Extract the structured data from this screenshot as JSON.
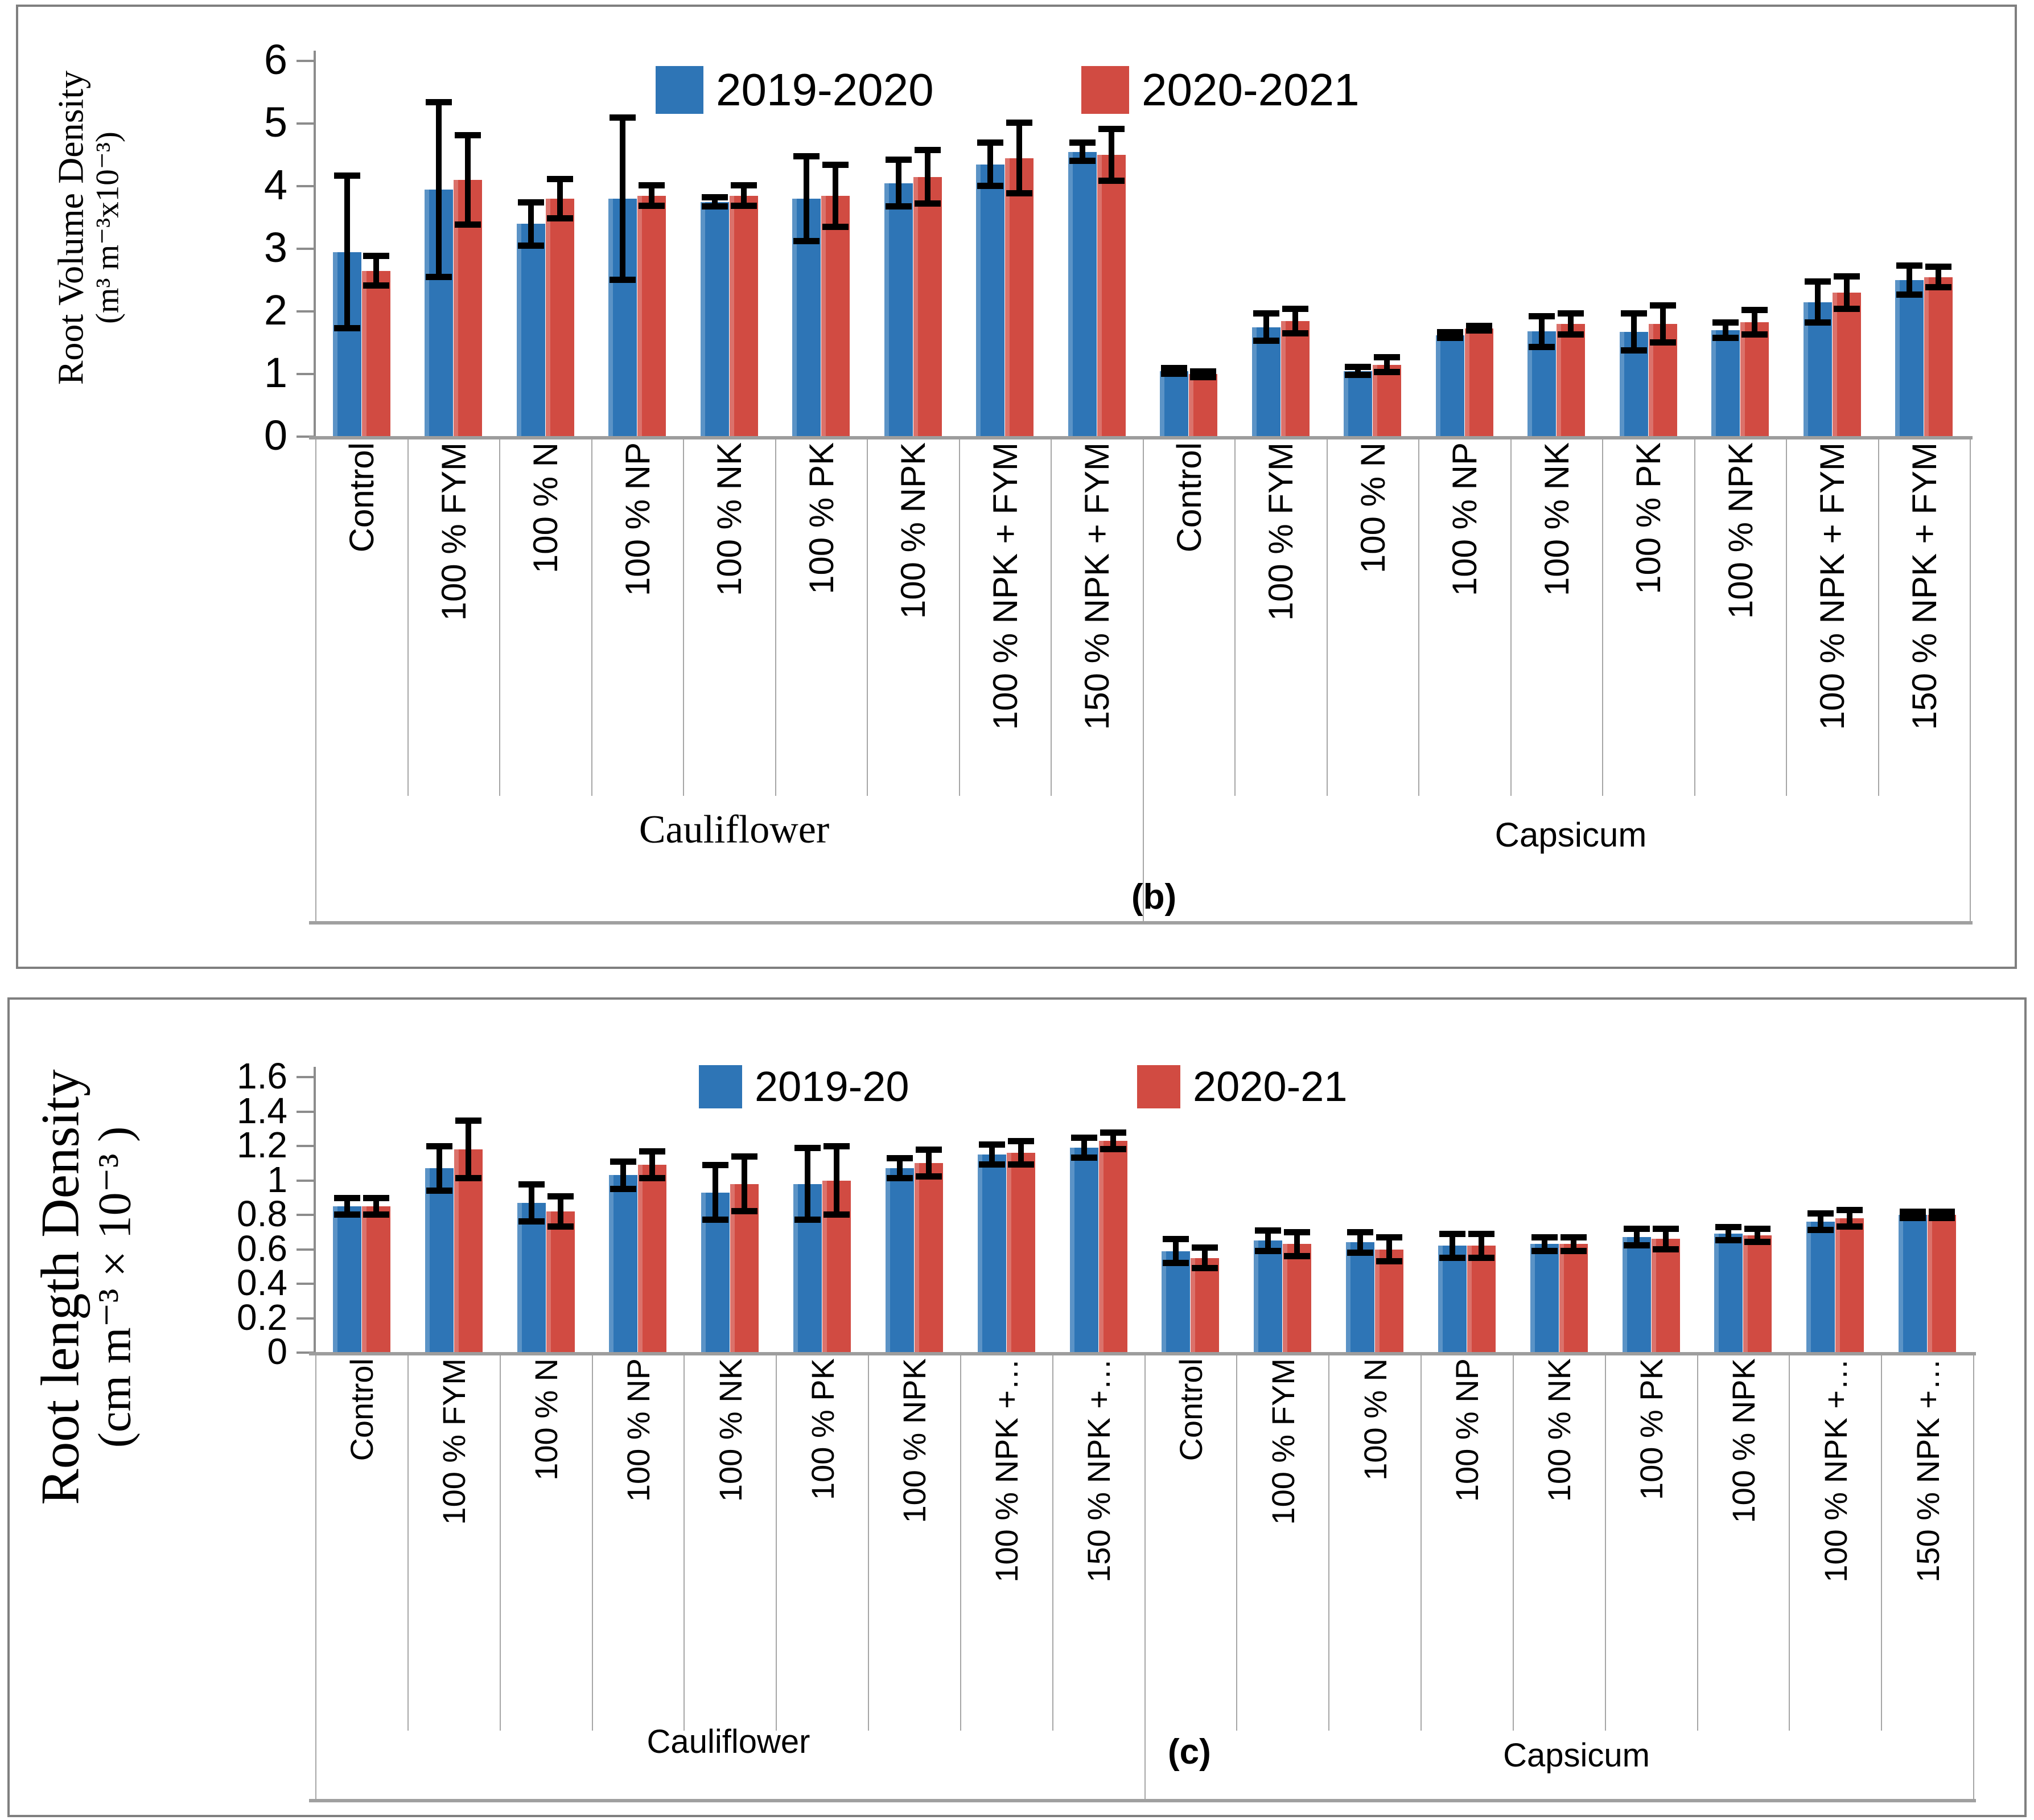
{
  "chart_data": [
    {
      "key": "b",
      "type": "bar",
      "panel_label": "(b)",
      "ylabel": {
        "line1": "Root Volume Density",
        "line2": "(m³ m⁻³x10⁻³)"
      },
      "ylim": [
        0,
        6
      ],
      "yticks": [
        {
          "v": 0,
          "label": "0"
        },
        {
          "v": 1,
          "label": "1"
        },
        {
          "v": 2,
          "label": "2"
        },
        {
          "v": 3,
          "label": "3"
        },
        {
          "v": 4,
          "label": "4"
        },
        {
          "v": 5,
          "label": "5"
        },
        {
          "v": 6,
          "label": "6"
        }
      ],
      "legend_position": "top",
      "grid": false,
      "groups": [
        {
          "label": "Cauliflower",
          "span": [
            0,
            8
          ]
        },
        {
          "label": "Capsicum",
          "span": [
            9,
            17
          ]
        }
      ],
      "categories": [
        "Control",
        "100 % FYM",
        "100 % N",
        "100 % NP",
        "100 % NK",
        "100 % PK",
        "100 % NPK",
        "100 % NPK + FYM",
        "150 % NPK + FYM",
        "Control",
        "100 % FYM",
        "100 % N",
        "100 % NP",
        "100 % NK",
        "100 % PK",
        "100 % NPK",
        "100 % NPK + FYM",
        "150 % NPK + FYM"
      ],
      "series": [
        {
          "name": "2019-2020",
          "color": "#2E75B6",
          "values": [
            2.95,
            3.95,
            3.4,
            3.8,
            3.75,
            3.8,
            4.05,
            4.35,
            4.55,
            1.05,
            1.75,
            1.05,
            1.62,
            1.68,
            1.67,
            1.7,
            2.15,
            2.5
          ],
          "errors": [
            1.22,
            1.4,
            0.35,
            1.3,
            0.08,
            0.68,
            0.38,
            0.35,
            0.15,
            0.05,
            0.22,
            0.07,
            0.05,
            0.25,
            0.3,
            0.13,
            0.33,
            0.24
          ]
        },
        {
          "name": "2020-2021",
          "color": "#D14B42",
          "values": [
            2.65,
            4.1,
            3.8,
            3.85,
            3.85,
            3.85,
            4.15,
            4.45,
            4.5,
            1.0,
            1.85,
            1.15,
            1.73,
            1.8,
            1.8,
            1.83,
            2.3,
            2.55
          ],
          "errors": [
            0.24,
            0.72,
            0.32,
            0.17,
            0.17,
            0.5,
            0.43,
            0.57,
            0.42,
            0.05,
            0.2,
            0.12,
            0.04,
            0.17,
            0.3,
            0.2,
            0.26,
            0.17
          ]
        }
      ]
    },
    {
      "key": "c",
      "type": "bar",
      "panel_label": "(c)",
      "ylabel": {
        "line1": "Root length Density",
        "line2": "(cm m⁻³ × 10⁻³ )"
      },
      "ylim": [
        0,
        1.6
      ],
      "yticks": [
        {
          "v": 0,
          "label": "0"
        },
        {
          "v": 0.2,
          "label": "0.2"
        },
        {
          "v": 0.4,
          "label": "0.4"
        },
        {
          "v": 0.6,
          "label": "0.6"
        },
        {
          "v": 0.8,
          "label": "0.8"
        },
        {
          "v": 1,
          "label": "1"
        },
        {
          "v": 1.2,
          "label": "1.2"
        },
        {
          "v": 1.4,
          "label": "1.4"
        },
        {
          "v": 1.6,
          "label": "1.6"
        }
      ],
      "legend_position": "top",
      "grid": false,
      "groups": [
        {
          "label": "Cauliflower",
          "span": [
            0,
            8
          ]
        },
        {
          "label": "Capsicum",
          "span": [
            9,
            17
          ]
        }
      ],
      "categories": [
        "Control",
        "100 % FYM",
        "100 % N",
        "100 % NP",
        "100 % NK",
        "100 % PK",
        "100 % NPK",
        "100 % NPK +…",
        "150 % NPK +…",
        "Control",
        "100 % FYM",
        "100 % N",
        "100 % NP",
        "100 % NK",
        "100 % PK",
        "100 % NPK",
        "100 % NPK +…",
        "150 % NPK +…"
      ],
      "series": [
        {
          "name": "2019-20",
          "color": "#2E75B6",
          "values": [
            0.85,
            1.07,
            0.87,
            1.03,
            0.93,
            0.98,
            1.07,
            1.15,
            1.19,
            0.59,
            0.65,
            0.64,
            0.62,
            0.63,
            0.67,
            0.69,
            0.76,
            0.8
          ],
          "errors": [
            0.05,
            0.13,
            0.11,
            0.08,
            0.16,
            0.21,
            0.06,
            0.06,
            0.06,
            0.07,
            0.06,
            0.06,
            0.07,
            0.04,
            0.05,
            0.04,
            0.05,
            0.02
          ]
        },
        {
          "name": "2020-21",
          "color": "#D14B42",
          "values": [
            0.85,
            1.18,
            0.82,
            1.09,
            0.98,
            1.0,
            1.1,
            1.16,
            1.23,
            0.55,
            0.63,
            0.6,
            0.62,
            0.63,
            0.66,
            0.68,
            0.78,
            0.8
          ],
          "errors": [
            0.05,
            0.17,
            0.09,
            0.08,
            0.16,
            0.2,
            0.08,
            0.07,
            0.05,
            0.06,
            0.07,
            0.07,
            0.07,
            0.04,
            0.06,
            0.04,
            0.05,
            0.02
          ]
        }
      ]
    }
  ]
}
